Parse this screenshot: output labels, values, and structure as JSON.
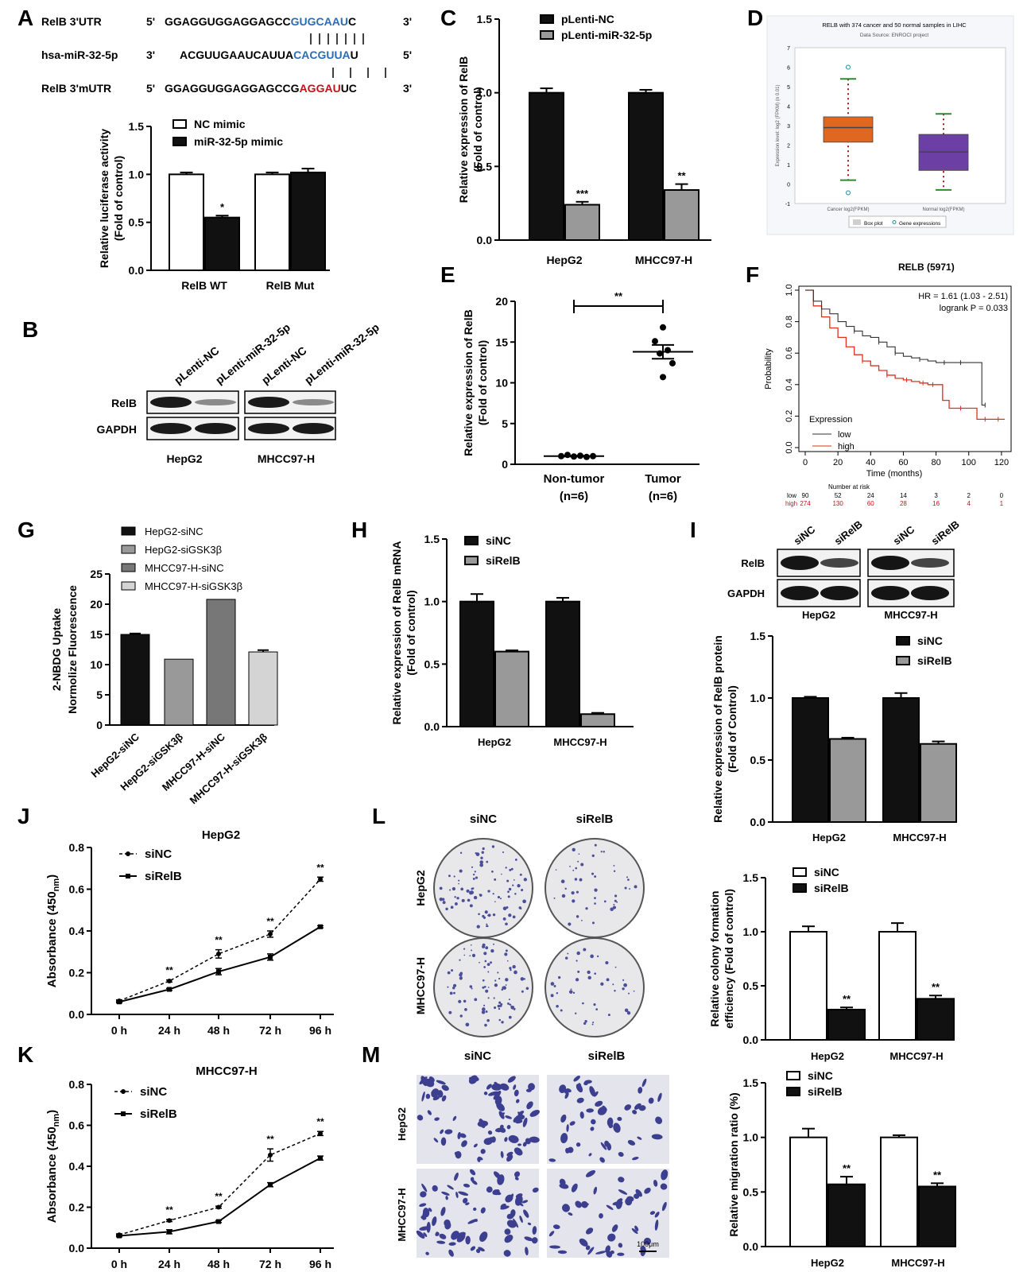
{
  "colors": {
    "black": "#111111",
    "gray": "#999999",
    "darkgray": "#777777",
    "lightgray": "#d4d4d4",
    "white": "#ffffff",
    "blue": "#2a6db5",
    "red": "#c0141a",
    "orange": "#e0671f",
    "purple": "#6b3fa3"
  },
  "panelA": {
    "letter": "A",
    "seq": [
      {
        "name": "RelB 3'UTR",
        "p5": "5'",
        "plain": "GGAGGUGGAGGAGCC",
        "colored": "GUGCAAU",
        "tail": "C",
        "p3": "3'",
        "color": "blue"
      },
      {
        "name": "hsa-miR-32-5p",
        "p5": "3'",
        "plain": "ACGUUGAAUCAUUA",
        "colored": "CACGUUA",
        "tail": "U",
        "p3": "5'",
        "color": "blue"
      },
      {
        "name": "RelB 3'mUTR",
        "p5": "5'",
        "plain": "GGAGGUGGAGGAGCCG",
        "colored": "AGGAU",
        "tail": "UC",
        "p3": "3'",
        "color": "red"
      }
    ],
    "chart": {
      "type": "bar",
      "ylabel": "Relative luciferase activity",
      "ylabel2": "(Fold of control)",
      "ylim": [
        0,
        1.5
      ],
      "yticks": [
        "0.0",
        "0.5",
        "1.0",
        "1.5"
      ],
      "categories": [
        "RelB  WT",
        "RelB Mut"
      ],
      "series": [
        {
          "name": "NC mimic",
          "values": [
            1.0,
            1.0
          ],
          "errors": [
            0.02,
            0.02
          ],
          "fill": "white"
        },
        {
          "name": "miR-32-5p mimic",
          "values": [
            0.55,
            1.02
          ],
          "errors": [
            0.02,
            0.04
          ],
          "fill": "black"
        }
      ],
      "sig": [
        "",
        "*",
        "",
        ""
      ]
    }
  },
  "panelB": {
    "letter": "B",
    "lanes": [
      "pLenti-NC",
      "pLenti-miR-32-5p",
      "pLenti-NC",
      "pLenti-miR-32-5p"
    ],
    "rows": [
      "RelB",
      "GAPDH"
    ],
    "groups": [
      "HepG2",
      "MHCC97-H"
    ]
  },
  "panelC": {
    "letter": "C",
    "chart": {
      "type": "bar",
      "ylabel": "Relative expression of RelB",
      "ylabel2": "(Fold of control)",
      "ylim": [
        0,
        1.5
      ],
      "yticks": [
        "0.0",
        "0.5",
        "1.0",
        "1.5"
      ],
      "categories": [
        "HepG2",
        "MHCC97-H"
      ],
      "series": [
        {
          "name": "pLenti-NC",
          "values": [
            1.0,
            1.0
          ],
          "errors": [
            0.03,
            0.02
          ],
          "fill": "black"
        },
        {
          "name": "pLenti-miR-32-5p",
          "values": [
            0.24,
            0.34
          ],
          "errors": [
            0.02,
            0.04
          ],
          "fill": "gray"
        }
      ],
      "sig": [
        "",
        "***",
        "",
        "**"
      ]
    }
  },
  "panelD": {
    "letter": "D",
    "title": "RELB with 374 cancer and 50 normal samples in LIHC",
    "subtitle": "Data Source: ENROCI project",
    "ylabel": "Expression level: log2 (FPKM) (n 0.01)",
    "ylim": [
      -1,
      7
    ],
    "yticks": [
      "-1",
      "0",
      "1",
      "2",
      "3",
      "4",
      "5",
      "6",
      "7"
    ],
    "boxes": [
      {
        "name": "Cancer log2(FPKM)",
        "q1": 2.15,
        "median": 2.9,
        "q3": 3.45,
        "lo": 0.2,
        "hi": 5.4,
        "out_hi": 6.0,
        "out_lo": -0.45,
        "fill": "orange"
      },
      {
        "name": "Normal log2(FPKM)",
        "q1": 0.7,
        "median": 1.65,
        "q3": 2.55,
        "lo": -0.3,
        "hi": 3.6,
        "fill": "purple"
      }
    ],
    "legend": [
      "Box plot",
      "Gene expressions"
    ]
  },
  "panelE": {
    "letter": "E",
    "chart": {
      "type": "scatter",
      "ylabel": "Relative expression of RelB",
      "ylabel2": "(Fold of control)",
      "ylim": [
        0,
        20
      ],
      "yticks": [
        "0",
        "5",
        "10",
        "15",
        "20"
      ],
      "categories": [
        "Non-tumor",
        "Tumor"
      ],
      "sublabels": [
        "(n=6)",
        "(n=6)"
      ],
      "points": [
        [
          1.0,
          1.15,
          0.95,
          1.05,
          0.9,
          1.0
        ],
        [
          16.8,
          15.1,
          14.0,
          13.6,
          12.4,
          10.7
        ]
      ],
      "means": [
        1.0,
        13.8
      ],
      "sem": [
        0.05,
        0.85
      ],
      "sig": "**"
    }
  },
  "panelF": {
    "letter": "F",
    "title": "RELB (5971)",
    "hr": "HR = 1.61 (1.03 - 2.51)",
    "logrank": "logrank P = 0.033",
    "ylabel": "Probability",
    "xlabel": "Time (months)",
    "yticks": [
      "0.0",
      "0.2",
      "0.4",
      "0.6",
      "0.8",
      "1.0"
    ],
    "xticks": [
      "0",
      "20",
      "40",
      "60",
      "80",
      "100",
      "120"
    ],
    "legend_title": "Expression",
    "legend": [
      "low",
      "high"
    ],
    "risk_title": "Number at risk",
    "risk_low": [
      "90",
      "52",
      "24",
      "14",
      "3",
      "2",
      "0"
    ],
    "risk_high": [
      "274",
      "130",
      "60",
      "28",
      "16",
      "4",
      "1"
    ],
    "curves": {
      "low": [
        [
          0,
          1.0
        ],
        [
          5,
          0.93
        ],
        [
          10,
          0.88
        ],
        [
          15,
          0.85
        ],
        [
          20,
          0.8
        ],
        [
          25,
          0.77
        ],
        [
          30,
          0.74
        ],
        [
          35,
          0.71
        ],
        [
          40,
          0.7
        ],
        [
          45,
          0.67
        ],
        [
          50,
          0.64
        ],
        [
          55,
          0.6
        ],
        [
          60,
          0.58
        ],
        [
          65,
          0.57
        ],
        [
          70,
          0.56
        ],
        [
          75,
          0.55
        ],
        [
          80,
          0.54
        ],
        [
          90,
          0.54
        ],
        [
          100,
          0.54
        ],
        [
          108,
          0.54
        ],
        [
          108,
          0.27
        ],
        [
          110,
          0.27
        ]
      ],
      "high": [
        [
          0,
          1.0
        ],
        [
          5,
          0.9
        ],
        [
          10,
          0.83
        ],
        [
          15,
          0.76
        ],
        [
          20,
          0.7
        ],
        [
          25,
          0.64
        ],
        [
          30,
          0.59
        ],
        [
          35,
          0.55
        ],
        [
          40,
          0.52
        ],
        [
          45,
          0.49
        ],
        [
          50,
          0.46
        ],
        [
          55,
          0.44
        ],
        [
          60,
          0.43
        ],
        [
          65,
          0.42
        ],
        [
          70,
          0.41
        ],
        [
          75,
          0.4
        ],
        [
          80,
          0.4
        ],
        [
          84,
          0.3
        ],
        [
          88,
          0.25
        ],
        [
          100,
          0.25
        ],
        [
          105,
          0.18
        ],
        [
          122,
          0.18
        ]
      ]
    }
  },
  "panelG": {
    "letter": "G",
    "chart": {
      "type": "bar",
      "ylabel": "2-NBDG Uptake",
      "ylabel2": "Normolize Fluorescence",
      "ylim": [
        0,
        25
      ],
      "yticks": [
        "0",
        "5",
        "10",
        "15",
        "20",
        "25"
      ],
      "categories": [
        "HepG2-siNC",
        "HepG2-siGSK3β",
        "MHCC97-H-siNC",
        "MHCC97-H-siGSK3β"
      ],
      "values": [
        15.0,
        10.9,
        20.8,
        12.1
      ],
      "errors": [
        0.15,
        0.0,
        0.0,
        0.3
      ],
      "fills": [
        "black",
        "gray",
        "darkgray",
        "lightgray"
      ],
      "legend": [
        "HepG2-siNC",
        "HepG2-siGSK3β",
        "MHCC97-H-siNC",
        "MHCC97-H-siGSK3β"
      ]
    }
  },
  "panelH": {
    "letter": "H",
    "chart": {
      "type": "bar",
      "ylabel": "Relative expression of RelB mRNA",
      "ylabel2": "(Fold of control)",
      "ylim": [
        0,
        1.5
      ],
      "yticks": [
        "0.0",
        "0.5",
        "1.0",
        "1.5"
      ],
      "categories": [
        "HepG2",
        "MHCC97-H"
      ],
      "series": [
        {
          "name": "siNC",
          "values": [
            1.0,
            1.0
          ],
          "errors": [
            0.06,
            0.03
          ],
          "fill": "black"
        },
        {
          "name": "siRelB",
          "values": [
            0.6,
            0.1
          ],
          "errors": [
            0.01,
            0.01
          ],
          "fill": "gray"
        }
      ]
    }
  },
  "panelI": {
    "letter": "I",
    "lanes": [
      "siNC",
      "siRelB",
      "siNC",
      "siRelB"
    ],
    "rows": [
      "RelB",
      "GAPDH"
    ],
    "groups": [
      "HepG2",
      "MHCC97-H"
    ],
    "chart": {
      "type": "bar",
      "ylabel": "Relative expression of RelB protein",
      "ylabel2": "(Fold of Control)",
      "ylim": [
        0,
        1.5
      ],
      "yticks": [
        "0.0",
        "0.5",
        "1.0",
        "1.5"
      ],
      "categories": [
        "HepG2",
        "MHCC97-H"
      ],
      "series": [
        {
          "name": "siNC",
          "values": [
            1.0,
            1.0
          ],
          "errors": [
            0.01,
            0.04
          ],
          "fill": "black"
        },
        {
          "name": "siRelB",
          "values": [
            0.67,
            0.63
          ],
          "errors": [
            0.01,
            0.02
          ],
          "fill": "gray"
        }
      ]
    }
  },
  "panelJ": {
    "letter": "J",
    "chart": {
      "type": "line",
      "title": "HepG2",
      "ylabel": "Absorbance (450",
      "ylabel_sub": "nm",
      "ylabel_end": ")",
      "ylim": [
        0,
        0.8
      ],
      "yticks": [
        "0.0",
        "0.2",
        "0.4",
        "0.6",
        "0.8"
      ],
      "categories": [
        "0 h",
        "24 h",
        "48 h",
        "72 h",
        "96 h"
      ],
      "series": [
        {
          "name": "siNC",
          "values": [
            0.065,
            0.16,
            0.29,
            0.385,
            0.648
          ],
          "errors": [
            0.005,
            0.005,
            0.02,
            0.015,
            0.01
          ],
          "dash": true
        },
        {
          "name": "siRelB",
          "values": [
            0.06,
            0.12,
            0.205,
            0.275,
            0.42
          ],
          "errors": [
            0.005,
            0.005,
            0.015,
            0.015,
            0.005
          ],
          "dash": false
        }
      ],
      "sig": [
        "",
        "**",
        "**",
        "**",
        "**"
      ]
    }
  },
  "panelK": {
    "letter": "K",
    "chart": {
      "type": "line",
      "title": "MHCC97-H",
      "ylabel": "Absorbance (450",
      "ylabel_sub": "nm",
      "ylabel_end": ")",
      "ylim": [
        0,
        0.8
      ],
      "yticks": [
        "0.0",
        "0.2",
        "0.4",
        "0.6",
        "0.8"
      ],
      "categories": [
        "0 h",
        "24 h",
        "48 h",
        "72 h",
        "96 h"
      ],
      "series": [
        {
          "name": "siNC",
          "values": [
            0.065,
            0.135,
            0.2,
            0.455,
            0.56
          ],
          "errors": [
            0.005,
            0.005,
            0.005,
            0.03,
            0.01
          ],
          "dash": true
        },
        {
          "name": "siRelB",
          "values": [
            0.06,
            0.08,
            0.13,
            0.31,
            0.44
          ],
          "errors": [
            0.005,
            0.01,
            0.005,
            0.01,
            0.01
          ],
          "dash": false
        }
      ],
      "sig": [
        "",
        "**",
        "**",
        "**",
        "**"
      ]
    }
  },
  "panelL": {
    "letter": "L",
    "cols": [
      "siNC",
      "siRelB"
    ],
    "rows": [
      "HepG2",
      "MHCC97-H"
    ],
    "chart": {
      "type": "bar",
      "ylabel": "Relative colony formation",
      "ylabel2": "efficiency (Fold of control)",
      "ylim": [
        0,
        1.5
      ],
      "yticks": [
        "0.0",
        "0.5",
        "1.0",
        "1.5"
      ],
      "categories": [
        "HepG2",
        "MHCC97-H"
      ],
      "series": [
        {
          "name": "siNC",
          "values": [
            1.0,
            1.0
          ],
          "errors": [
            0.05,
            0.08
          ],
          "fill": "white"
        },
        {
          "name": "siRelB",
          "values": [
            0.28,
            0.38
          ],
          "errors": [
            0.02,
            0.03
          ],
          "fill": "black"
        }
      ],
      "sig": [
        "",
        "**",
        "",
        "**"
      ]
    }
  },
  "panelM": {
    "letter": "M",
    "cols": [
      "siNC",
      "siRelB"
    ],
    "rows": [
      "HepG2",
      "MHCC97-H"
    ],
    "scale": "100μm",
    "chart": {
      "type": "bar",
      "ylabel": "Relative migration ratio (%)",
      "ylim": [
        0,
        1.5
      ],
      "yticks": [
        "0.0",
        "0.5",
        "1.0",
        "1.5"
      ],
      "categories": [
        "HepG2",
        "MHCC97-H"
      ],
      "series": [
        {
          "name": "siNC",
          "values": [
            1.0,
            1.0
          ],
          "errors": [
            0.08,
            0.02
          ],
          "fill": "white"
        },
        {
          "name": "siRelB",
          "values": [
            0.57,
            0.55
          ],
          "errors": [
            0.07,
            0.03
          ],
          "fill": "black"
        }
      ],
      "sig": [
        "",
        "**",
        "",
        "**"
      ]
    }
  }
}
